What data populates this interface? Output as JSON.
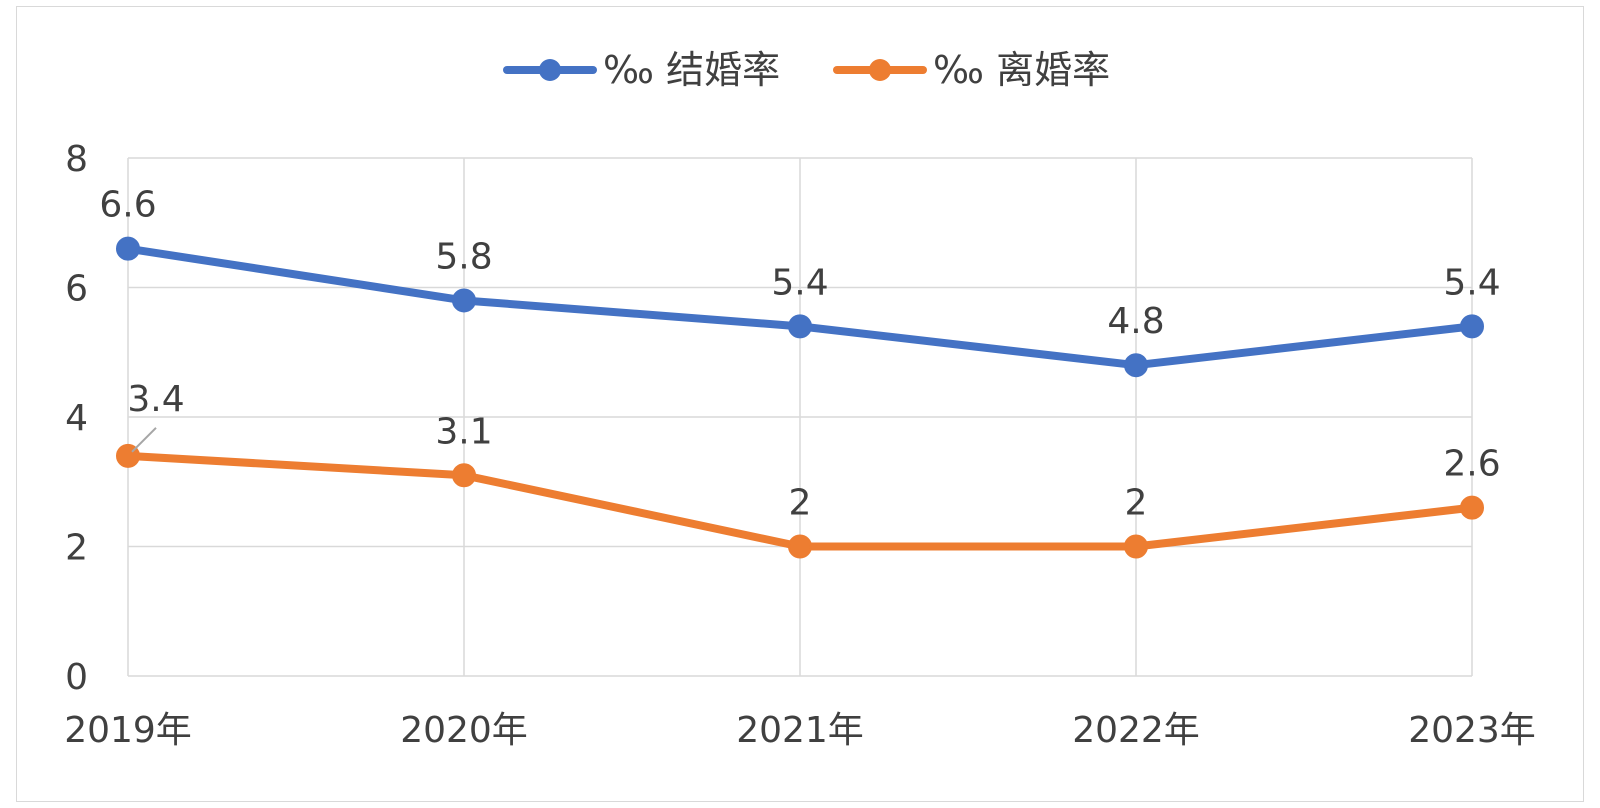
{
  "chart_data": {
    "type": "line",
    "categories": [
      "2019年",
      "2020年",
      "2021年",
      "2022年",
      "2023年"
    ],
    "series": [
      {
        "name": "‰ 结婚率",
        "values": [
          6.6,
          5.8,
          5.4,
          4.8,
          5.4
        ],
        "color": "#4472C4"
      },
      {
        "name": "‰ 离婚率",
        "values": [
          3.4,
          3.1,
          2,
          2,
          2.6
        ],
        "color": "#ED7D31"
      }
    ],
    "ylim": [
      0,
      8
    ],
    "yticks": [
      0,
      2,
      4,
      6,
      8
    ],
    "grid": true,
    "legend_position": "top-center",
    "data_labels": true
  }
}
